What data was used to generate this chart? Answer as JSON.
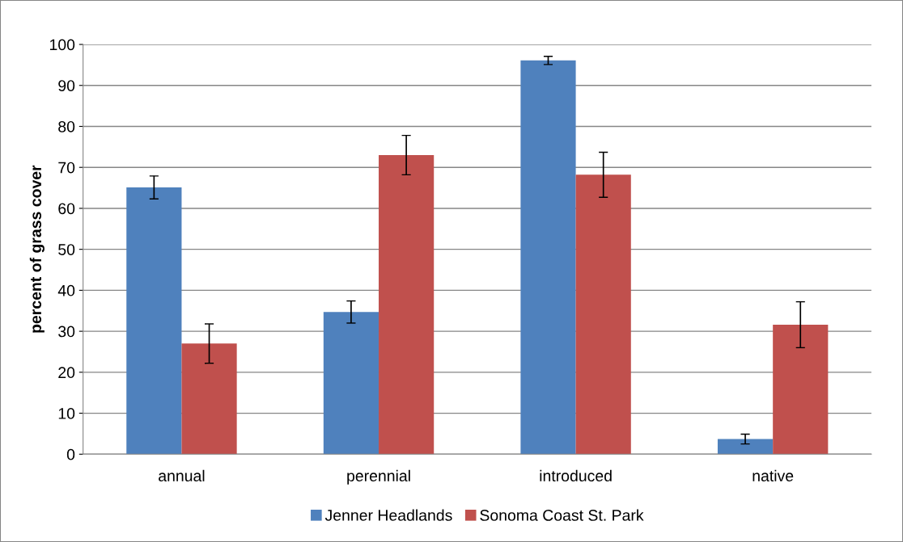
{
  "chart_data": {
    "type": "bar",
    "ylabel": "percent of grass cover",
    "categories": [
      "annual",
      "perennial",
      "introduced",
      "native"
    ],
    "series": [
      {
        "name": "Jenner Headlands",
        "color": "#4f81bd",
        "values": [
          65.1,
          34.7,
          96.1,
          3.7
        ],
        "errors": [
          2.8,
          2.7,
          1.0,
          1.2
        ]
      },
      {
        "name": "Sonoma Coast St. Park",
        "color": "#c0504d",
        "values": [
          27.0,
          73.0,
          68.2,
          31.6
        ],
        "errors": [
          4.8,
          4.8,
          5.5,
          5.6
        ]
      }
    ],
    "ylim": [
      0,
      100
    ],
    "yticks": [
      0,
      10,
      20,
      30,
      40,
      50,
      60,
      70,
      80,
      90,
      100
    ],
    "grid": "y",
    "legend": "bottom"
  }
}
